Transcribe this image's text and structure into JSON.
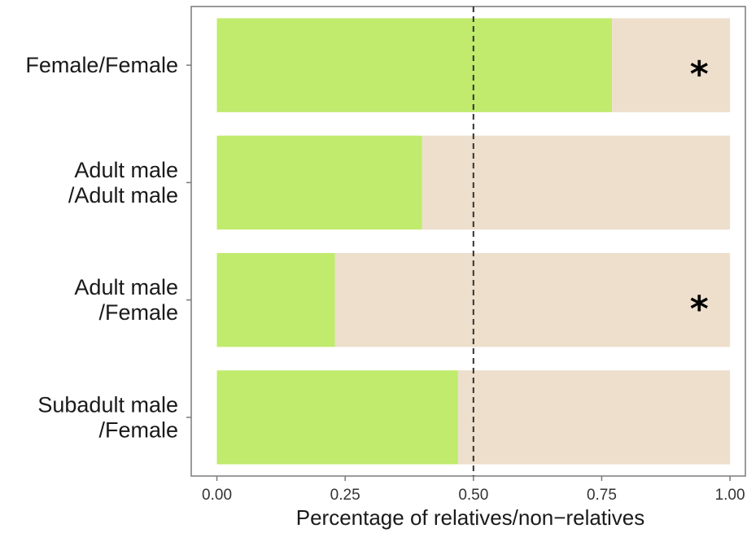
{
  "chart_data": {
    "type": "bar",
    "orientation": "horizontal",
    "stacked": true,
    "categories": [
      "Female/Female",
      "Adult male\n/Adult male",
      "Adult male\n/Female",
      "Subadult male\n/Female"
    ],
    "series": [
      {
        "values": [
          0.77,
          0.4,
          0.23,
          0.47
        ],
        "color": "#c0eb6d"
      },
      {
        "values": [
          0.23,
          0.6,
          0.77,
          0.53
        ],
        "color": "#eddfcc"
      }
    ],
    "xlabel": "Percentage of relatives/non−relatives",
    "ylabel": "",
    "xlim": [
      -0.05,
      1.03
    ],
    "xticks": [
      0.0,
      0.25,
      0.5,
      0.75,
      1.0
    ],
    "xtick_labels": [
      "0.00",
      "0.25",
      "0.50",
      "0.75",
      "1.00"
    ],
    "reference_line": {
      "x": 0.5,
      "style": "dashed"
    },
    "annotations": [
      {
        "text": "*",
        "category": "Female/Female",
        "x": 0.94
      },
      {
        "text": "*",
        "category": "Adult male\n/Female",
        "x": 0.94
      }
    ],
    "grid": false,
    "legend": "none"
  }
}
